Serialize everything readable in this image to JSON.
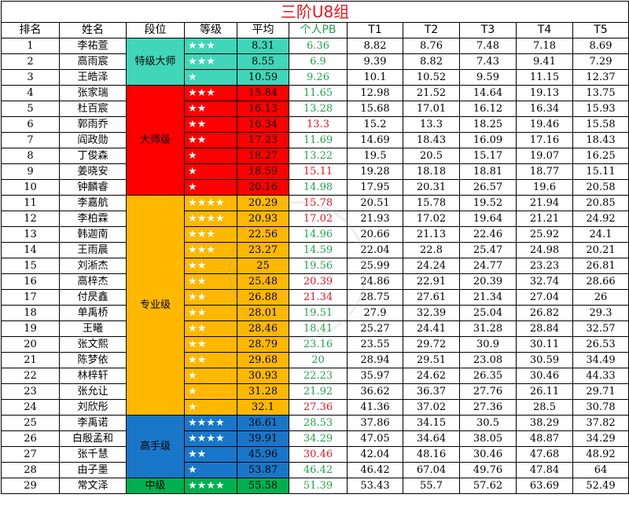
{
  "title": "三阶U8组",
  "headers": {
    "rank": "排名",
    "name": "姓名",
    "tier": "段位",
    "level": "等级",
    "avg": "平均",
    "pb": "个人PB",
    "t1": "T1",
    "t2": "T2",
    "t3": "T3",
    "t4": "T4",
    "t5": "T5"
  },
  "colors": {
    "tier_top": "#3fd6b9",
    "tier_master": "#ff0000",
    "tier_pro": "#ffb800",
    "tier_expert": "#1877c9",
    "tier_mid": "#00b050",
    "pb_good": "#22a34a",
    "pb_bad": "#e8161b"
  },
  "tiers": [
    {
      "label": "特级大师",
      "rows": 3,
      "color": "#3fd6b9"
    },
    {
      "label": "大师级",
      "rows": 7,
      "color": "#ff0000"
    },
    {
      "label": "专业级",
      "rows": 14,
      "color": "#ffb800"
    },
    {
      "label": "高手级",
      "rows": 4,
      "color": "#1877c9"
    },
    {
      "label": "中级",
      "rows": 1,
      "color": "#00b050"
    }
  ],
  "rows": [
    {
      "rank": "1",
      "name": "李祐萱",
      "stars": "★★★",
      "avg": "8.31",
      "pb": "6.36",
      "pbc": "g",
      "t1": "8.82",
      "t2": "8.76",
      "t3": "7.48",
      "t4": "7.18",
      "t5": "8.69"
    },
    {
      "rank": "2",
      "name": "高雨宸",
      "stars": "★★★",
      "avg": "8.55",
      "pb": "6.9",
      "pbc": "g",
      "t1": "9.39",
      "t2": "8.82",
      "t3": "7.43",
      "t4": "9.41",
      "t5": "7.29"
    },
    {
      "rank": "3",
      "name": "王皓泽",
      "stars": "★",
      "avg": "10.59",
      "pb": "9.26",
      "pbc": "g",
      "t1": "10.1",
      "t2": "10.52",
      "t3": "9.59",
      "t4": "11.15",
      "t5": "12.37"
    },
    {
      "rank": "4",
      "name": "张家瑞",
      "stars": "★★★",
      "avg": "15.84",
      "pb": "11.65",
      "pbc": "g",
      "t1": "12.98",
      "t2": "21.52",
      "t3": "14.64",
      "t4": "19.13",
      "t5": "13.75"
    },
    {
      "rank": "5",
      "name": "杜百宸",
      "stars": "★★",
      "avg": "16.13",
      "pb": "13.28",
      "pbc": "g",
      "t1": "15.68",
      "t2": "17.01",
      "t3": "16.12",
      "t4": "16.34",
      "t5": "15.93"
    },
    {
      "rank": "6",
      "name": "郭雨乔",
      "stars": "★★",
      "avg": "16.34",
      "pb": "13.3",
      "pbc": "r",
      "t1": "15.2",
      "t2": "13.3",
      "t3": "18.25",
      "t4": "19.46",
      "t5": "15.58"
    },
    {
      "rank": "7",
      "name": "阎政勋",
      "stars": "★★",
      "avg": "17.23",
      "pb": "11.69",
      "pbc": "g",
      "t1": "14.69",
      "t2": "18.43",
      "t3": "16.09",
      "t4": "17.16",
      "t5": "18.43"
    },
    {
      "rank": "8",
      "name": "丁俊森",
      "stars": "★",
      "avg": "18.27",
      "pb": "13.22",
      "pbc": "g",
      "t1": "19.5",
      "t2": "20.5",
      "t3": "15.17",
      "t4": "19.07",
      "t5": "16.25"
    },
    {
      "rank": "9",
      "name": "姜晓安",
      "stars": "★",
      "avg": "18.59",
      "pb": "15.11",
      "pbc": "r",
      "t1": "19.28",
      "t2": "18.18",
      "t3": "18.81",
      "t4": "18.77",
      "t5": "15.11"
    },
    {
      "rank": "10",
      "name": "钟麟睿",
      "stars": "★",
      "avg": "20.16",
      "pb": "14.98",
      "pbc": "g",
      "t1": "17.95",
      "t2": "20.31",
      "t3": "26.57",
      "t4": "19.6",
      "t5": "20.58"
    },
    {
      "rank": "11",
      "name": "李嘉航",
      "stars": "★★★★",
      "avg": "20.29",
      "pb": "15.78",
      "pbc": "r",
      "t1": "20.51",
      "t2": "15.78",
      "t3": "19.52",
      "t4": "21.94",
      "t5": "20.85"
    },
    {
      "rank": "12",
      "name": "李柏霖",
      "stars": "★★★★",
      "avg": "20.93",
      "pb": "17.02",
      "pbc": "r",
      "t1": "21.93",
      "t2": "17.02",
      "t3": "19.64",
      "t4": "21.21",
      "t5": "24.92"
    },
    {
      "rank": "13",
      "name": "韩迦南",
      "stars": "★★★",
      "avg": "22.56",
      "pb": "14.96",
      "pbc": "g",
      "t1": "20.66",
      "t2": "21.13",
      "t3": "22.46",
      "t4": "25.92",
      "t5": "24.1"
    },
    {
      "rank": "14",
      "name": "王雨晨",
      "stars": "★★★",
      "avg": "23.27",
      "pb": "14.59",
      "pbc": "g",
      "t1": "22.04",
      "t2": "22.8",
      "t3": "25.47",
      "t4": "24.98",
      "t5": "20.21"
    },
    {
      "rank": "15",
      "name": "刘淅杰",
      "stars": "★★",
      "avg": "25",
      "pb": "19.56",
      "pbc": "g",
      "t1": "25.99",
      "t2": "24.24",
      "t3": "24.77",
      "t4": "23.23",
      "t5": "26.81"
    },
    {
      "rank": "16",
      "name": "高梓杰",
      "stars": "★★",
      "avg": "25.48",
      "pb": "20.39",
      "pbc": "r",
      "t1": "24.86",
      "t2": "22.91",
      "t3": "20.39",
      "t4": "32.74",
      "t5": "28.66"
    },
    {
      "rank": "17",
      "name": "付昃鑫",
      "stars": "★★",
      "avg": "26.88",
      "pb": "21.34",
      "pbc": "r",
      "t1": "28.75",
      "t2": "27.61",
      "t3": "21.34",
      "t4": "27.04",
      "t5": "26"
    },
    {
      "rank": "18",
      "name": "单禹桥",
      "stars": "★★",
      "avg": "28.01",
      "pb": "19.51",
      "pbc": "g",
      "t1": "27.9",
      "t2": "32.39",
      "t3": "25.04",
      "t4": "26.82",
      "t5": "29.3"
    },
    {
      "rank": "19",
      "name": "王曦",
      "stars": "★★",
      "avg": "28.46",
      "pb": "18.41",
      "pbc": "g",
      "t1": "25.27",
      "t2": "24.41",
      "t3": "31.28",
      "t4": "28.84",
      "t5": "32.57"
    },
    {
      "rank": "20",
      "name": "张文熙",
      "stars": "★★",
      "avg": "28.79",
      "pb": "23.16",
      "pbc": "g",
      "t1": "23.55",
      "t2": "29.72",
      "t3": "30.9",
      "t4": "30.11",
      "t5": "26.53"
    },
    {
      "rank": "21",
      "name": "陈梦依",
      "stars": "★★",
      "avg": "29.68",
      "pb": "20",
      "pbc": "g",
      "t1": "28.94",
      "t2": "29.51",
      "t3": "23.08",
      "t4": "30.59",
      "t5": "34.49"
    },
    {
      "rank": "22",
      "name": "林梓轩",
      "stars": "★",
      "avg": "30.93",
      "pb": "22.23",
      "pbc": "g",
      "t1": "35.97",
      "t2": "24.62",
      "t3": "26.35",
      "t4": "30.46",
      "t5": "44.33"
    },
    {
      "rank": "23",
      "name": "张允让",
      "stars": "★",
      "avg": "31.28",
      "pb": "21.92",
      "pbc": "g",
      "t1": "36.62",
      "t2": "36.37",
      "t3": "27.76",
      "t4": "26.11",
      "t5": "29.71"
    },
    {
      "rank": "24",
      "name": "刘欣彤",
      "stars": "★",
      "avg": "32.1",
      "pb": "27.36",
      "pbc": "r",
      "t1": "41.36",
      "t2": "37.02",
      "t3": "27.36",
      "t4": "28.5",
      "t5": "30.78"
    },
    {
      "rank": "25",
      "name": "李禹诺",
      "stars": "★★★★",
      "avg": "36.61",
      "pb": "28.53",
      "pbc": "g",
      "t1": "37.86",
      "t2": "34.15",
      "t3": "30.5",
      "t4": "38.29",
      "t5": "37.82"
    },
    {
      "rank": "26",
      "name": "白殷孟和",
      "stars": "★★★★",
      "avg": "39.91",
      "pb": "34.29",
      "pbc": "g",
      "t1": "47.05",
      "t2": "34.64",
      "t3": "38.05",
      "t4": "48.87",
      "t5": "34.29"
    },
    {
      "rank": "27",
      "name": "张千慧",
      "stars": "★★",
      "avg": "45.96",
      "pb": "30.46",
      "pbc": "r",
      "t1": "42.04",
      "t2": "48.16",
      "t3": "30.46",
      "t4": "47.68",
      "t5": "48.92"
    },
    {
      "rank": "28",
      "name": "由子墨",
      "stars": "★",
      "avg": "53.87",
      "pb": "46.42",
      "pbc": "g",
      "t1": "46.42",
      "t2": "67.04",
      "t3": "49.76",
      "t4": "47.84",
      "t5": "64"
    },
    {
      "rank": "29",
      "name": "常文泽",
      "stars": "★★★★",
      "avg": "55.58",
      "pb": "51.39",
      "pbc": "g",
      "t1": "53.43",
      "t2": "55.7",
      "t3": "57.62",
      "t4": "63.69",
      "t5": "52.49"
    }
  ]
}
